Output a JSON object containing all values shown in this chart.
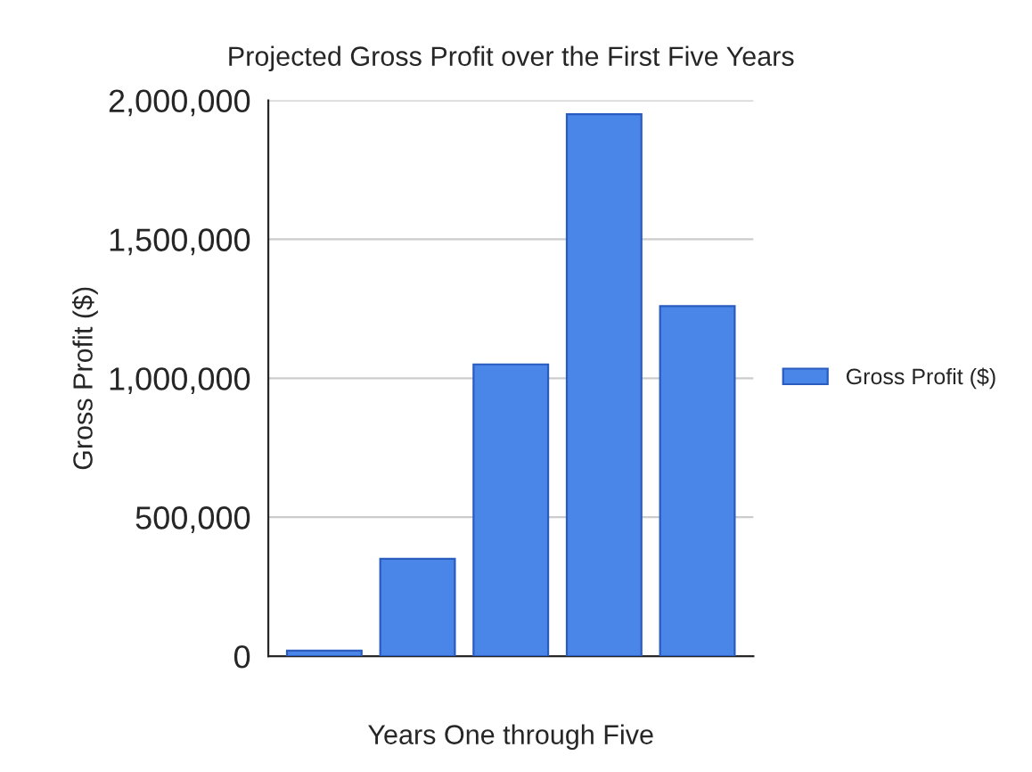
{
  "chart_data": {
    "type": "bar",
    "title": "Projected Gross Profit over the First Five Years",
    "xlabel": "Years One through Five",
    "ylabel": "Gross Profit ($)",
    "categories": [
      null,
      null,
      null,
      null,
      null
    ],
    "series": [
      {
        "name": "Gross Profit ($)",
        "color": "#4a86e8",
        "values": [
          20000,
          350000,
          1050000,
          1950000,
          1260000
        ]
      }
    ],
    "ylim": [
      0,
      2000000
    ],
    "yticks": [
      {
        "value": 0,
        "label": "0"
      },
      {
        "value": 500000,
        "label": "500,000"
      },
      {
        "value": 1000000,
        "label": "1,000,000"
      },
      {
        "value": 1500000,
        "label": "1,500,000"
      },
      {
        "value": 2000000,
        "label": "2,000,000"
      }
    ],
    "grid": "y",
    "legend": "right"
  }
}
